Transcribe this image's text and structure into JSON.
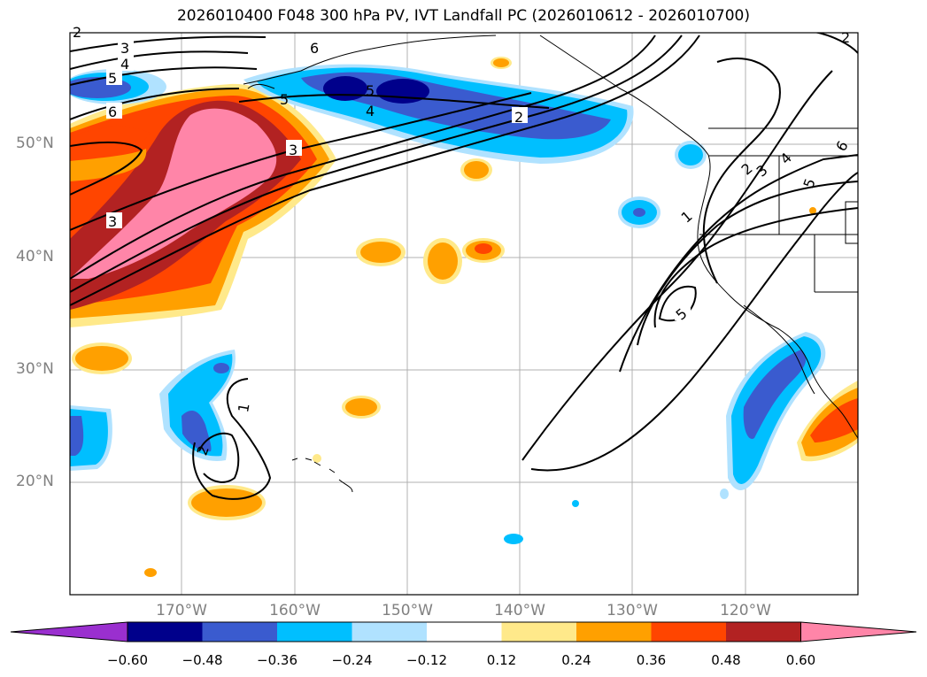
{
  "title": "2026010400 F048 300 hPa PV, IVT Landfall PC (2026010612 - 2026010700)",
  "lat_labels": [
    "50°N",
    "40°N",
    "30°N",
    "20°N"
  ],
  "lon_labels": [
    "170°W",
    "160°W",
    "150°W",
    "140°W",
    "130°W",
    "120°W"
  ],
  "colorbar": {
    "ticks": [
      "−0.60",
      "−0.48",
      "−0.36",
      "−0.24",
      "−0.12",
      "0.12",
      "0.24",
      "0.36",
      "0.48",
      "0.60"
    ],
    "colors": [
      "#9a2fcf",
      "#00008b",
      "#3a5bcf",
      "#00bfff",
      "#b0e2ff",
      "#ffffff",
      "#ffe98a",
      "#ffa000",
      "#ff4500",
      "#b22222",
      "#ff85a8",
      "#ff85a8"
    ]
  },
  "contour_labels": [
    "3",
    "4",
    "5",
    "6",
    "2",
    "3",
    "5",
    "6",
    "2",
    "4",
    "5",
    "3",
    "1",
    "2",
    "5",
    "1",
    "2",
    "3",
    "4",
    "5",
    "6",
    "2"
  ]
}
